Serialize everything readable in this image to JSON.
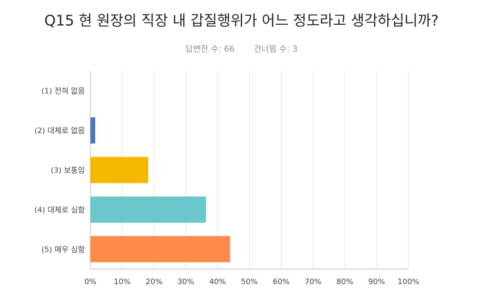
{
  "question": {
    "title": "Q15 현 원장의 직장 내 갑질행위가 어느 정도라고 생각하십니까?",
    "answered": "답변한 수: 66",
    "skipped": "건너뜀 수: 3"
  },
  "chart_data": {
    "type": "bar",
    "orientation": "horizontal",
    "categories": [
      "(1) 전혀 없음",
      "(2) 대체로 없음",
      "(3) 보통임",
      "(4) 대체로 심함",
      "(5) 매우 심함"
    ],
    "values": [
      0,
      1.52,
      18.18,
      36.36,
      43.94
    ],
    "colors": [
      "#3a78c2",
      "#4a7ab8",
      "#f5b800",
      "#6ac7cb",
      "#ff8a4a"
    ],
    "xlim": [
      0,
      100
    ],
    "xticks": [
      "0%",
      "10%",
      "20%",
      "30%",
      "40%",
      "50%",
      "60%",
      "70%",
      "80%",
      "90%",
      "100%"
    ],
    "grid": true,
    "title": "Q15 현 원장의 직장 내 갑질행위가 어느 정도라고 생각하십니까?",
    "xlabel": "",
    "ylabel": ""
  }
}
